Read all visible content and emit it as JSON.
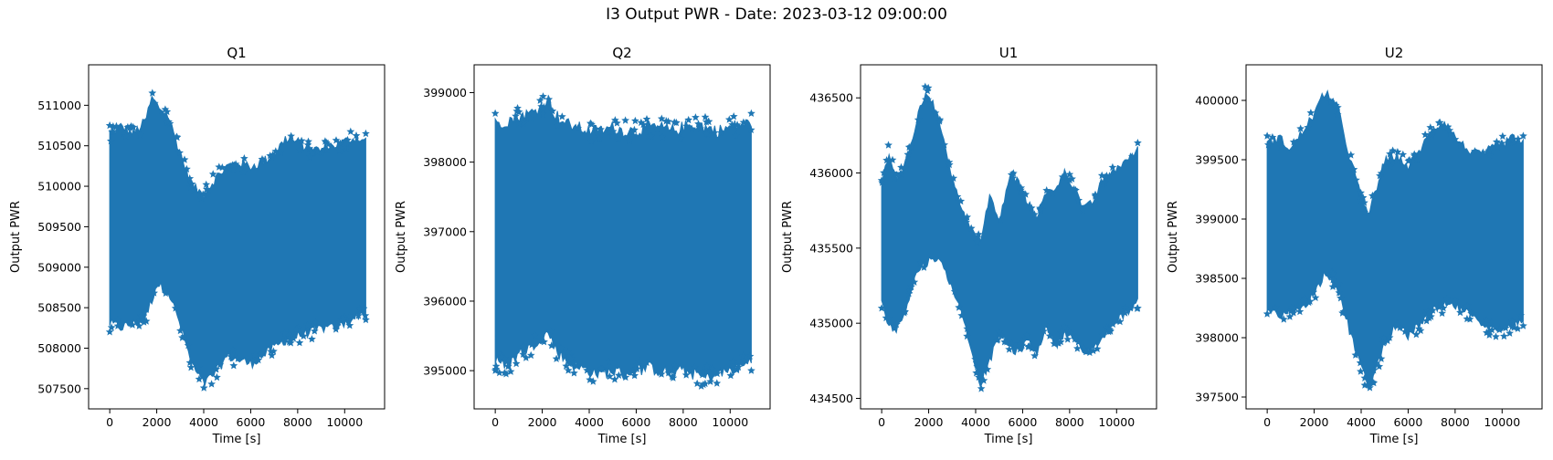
{
  "suptitle": "I3 Output PWR - Date: 2023-03-12 09:00:00",
  "colors": {
    "series": "#1f77b4",
    "frame": "#000000",
    "background": "#ffffff"
  },
  "chart_data": [
    {
      "type": "scatter",
      "title": "Q1",
      "xlabel": "Time [s]",
      "ylabel": "Output PWR",
      "xlim": [
        -900,
        11700
      ],
      "ylim": [
        507250,
        511500
      ],
      "xticks": [
        0,
        2000,
        4000,
        6000,
        8000,
        10000
      ],
      "yticks": [
        507500,
        508000,
        508500,
        509000,
        509500,
        510000,
        510500,
        511000
      ],
      "marker": "star",
      "grid": false,
      "envelope": {
        "x": [
          0,
          500,
          1000,
          1500,
          1800,
          2000,
          2500,
          3000,
          3500,
          4000,
          4500,
          5000,
          5500,
          6000,
          6500,
          7000,
          7500,
          8000,
          8500,
          9000,
          9500,
          10000,
          10500,
          10900
        ],
        "upper": [
          510750,
          510850,
          510750,
          510900,
          511200,
          511100,
          510950,
          510500,
          510100,
          510000,
          510200,
          510350,
          510400,
          510350,
          510400,
          510500,
          510700,
          510650,
          510550,
          510550,
          510600,
          510650,
          510700,
          510650
        ],
        "lower": [
          508200,
          508150,
          508200,
          508250,
          508500,
          508700,
          508600,
          508200,
          507700,
          507450,
          507600,
          507800,
          507750,
          507700,
          507800,
          507900,
          508000,
          508050,
          508100,
          508150,
          508150,
          508200,
          508300,
          508350
        ]
      }
    },
    {
      "type": "scatter",
      "title": "Q2",
      "xlabel": "Time [s]",
      "ylabel": "Output PWR",
      "xlim": [
        -900,
        11700
      ],
      "ylim": [
        394450,
        399400
      ],
      "xticks": [
        0,
        2000,
        4000,
        6000,
        8000,
        10000
      ],
      "yticks": [
        395000,
        396000,
        397000,
        398000,
        399000
      ],
      "marker": "star",
      "grid": false,
      "envelope": {
        "x": [
          0,
          500,
          1000,
          1500,
          2000,
          2300,
          2500,
          3000,
          3500,
          4000,
          4500,
          5000,
          5500,
          6000,
          6500,
          7000,
          7500,
          8000,
          8500,
          9000,
          9500,
          10000,
          10500,
          10900
        ],
        "upper": [
          398700,
          398750,
          398800,
          398850,
          398950,
          399050,
          398850,
          398700,
          398650,
          398600,
          398600,
          398650,
          398600,
          398600,
          398650,
          398650,
          398600,
          398650,
          398700,
          398650,
          398600,
          398650,
          398700,
          398700
        ],
        "lower": [
          395000,
          394900,
          395100,
          395200,
          395350,
          395400,
          395200,
          395000,
          394900,
          394850,
          394800,
          394850,
          394800,
          394850,
          394900,
          394850,
          394800,
          394850,
          394800,
          394750,
          394800,
          394850,
          394900,
          395000
        ]
      }
    },
    {
      "type": "scatter",
      "title": "U1",
      "xlabel": "Time [s]",
      "ylabel": "Output PWR",
      "xlim": [
        -900,
        11700
      ],
      "ylim": [
        434430,
        436720
      ],
      "xticks": [
        0,
        2000,
        4000,
        6000,
        8000,
        10000
      ],
      "yticks": [
        434500,
        435000,
        435500,
        436000,
        436500
      ],
      "marker": "star",
      "grid": false,
      "envelope": {
        "x": [
          0,
          300,
          600,
          900,
          1200,
          1500,
          1900,
          2200,
          2600,
          3000,
          3400,
          3800,
          4200,
          4600,
          5000,
          5400,
          5800,
          6200,
          6600,
          7000,
          7400,
          7800,
          8200,
          8600,
          9000,
          9400,
          9800,
          10200,
          10600,
          10900
        ],
        "upper": [
          435950,
          436200,
          436000,
          436050,
          436200,
          436400,
          436600,
          436500,
          436300,
          436000,
          435800,
          435650,
          435600,
          435900,
          435700,
          436000,
          436000,
          435850,
          435750,
          435900,
          435950,
          436050,
          435950,
          435800,
          435850,
          436000,
          436050,
          436100,
          436150,
          436200
        ],
        "lower": [
          435100,
          434950,
          434900,
          435000,
          435150,
          435300,
          435350,
          435400,
          435350,
          435200,
          435050,
          434800,
          434550,
          434700,
          434900,
          434800,
          434750,
          434850,
          434750,
          434950,
          434800,
          434900,
          434850,
          434750,
          434800,
          434850,
          434950,
          435000,
          435050,
          435100
        ]
      }
    },
    {
      "type": "scatter",
      "title": "U2",
      "xlabel": "Time [s]",
      "ylabel": "Output PWR",
      "xlim": [
        -900,
        11700
      ],
      "ylim": [
        397400,
        400300
      ],
      "xticks": [
        0,
        2000,
        4000,
        6000,
        8000,
        10000
      ],
      "yticks": [
        397500,
        398000,
        398500,
        399000,
        399500,
        400000
      ],
      "marker": "star",
      "grid": false,
      "envelope": {
        "x": [
          0,
          500,
          1000,
          1500,
          2000,
          2500,
          3000,
          3500,
          4000,
          4300,
          4600,
          5000,
          5500,
          6000,
          6500,
          7000,
          7500,
          8000,
          8500,
          9000,
          9500,
          10000,
          10500,
          10900
        ],
        "upper": [
          399700,
          399750,
          399650,
          399800,
          399950,
          400150,
          400000,
          399600,
          399250,
          399100,
          399300,
          399550,
          399600,
          399500,
          399650,
          399800,
          399900,
          399750,
          399650,
          399600,
          399650,
          399700,
          399750,
          399700
        ],
        "lower": [
          398200,
          398100,
          398150,
          398200,
          398300,
          398500,
          398350,
          398000,
          397700,
          397500,
          397650,
          397900,
          398050,
          397950,
          398050,
          398150,
          398200,
          398200,
          398150,
          398100,
          398000,
          398000,
          398050,
          398100
        ]
      }
    }
  ]
}
